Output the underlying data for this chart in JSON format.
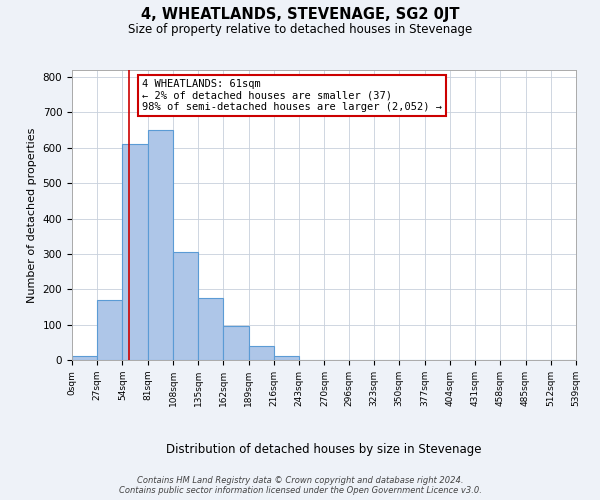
{
  "title": "4, WHEATLANDS, STEVENAGE, SG2 0JT",
  "subtitle": "Size of property relative to detached houses in Stevenage",
  "xlabel": "Distribution of detached houses by size in Stevenage",
  "ylabel": "Number of detached properties",
  "bin_edges": [
    0,
    27,
    54,
    81,
    108,
    135,
    162,
    189,
    216,
    243,
    270,
    296,
    323,
    350,
    377,
    404,
    431,
    458,
    485,
    512,
    539
  ],
  "bar_heights": [
    10,
    170,
    610,
    650,
    305,
    175,
    97,
    40,
    10,
    0,
    0,
    0,
    0,
    0,
    0,
    0,
    0,
    0,
    0,
    0
  ],
  "bar_color": "#aec6e8",
  "bar_edge_color": "#5b9bd5",
  "vline_x": 61,
  "vline_color": "#cc0000",
  "annotation_text": "4 WHEATLANDS: 61sqm\n← 2% of detached houses are smaller (37)\n98% of semi-detached houses are larger (2,052) →",
  "annotation_box_color": "#ffffff",
  "annotation_box_edge": "#cc0000",
  "ylim": [
    0,
    820
  ],
  "yticks": [
    0,
    100,
    200,
    300,
    400,
    500,
    600,
    700,
    800
  ],
  "tick_labels": [
    "0sqm",
    "27sqm",
    "54sqm",
    "81sqm",
    "108sqm",
    "135sqm",
    "162sqm",
    "189sqm",
    "216sqm",
    "243sqm",
    "270sqm",
    "296sqm",
    "323sqm",
    "350sqm",
    "377sqm",
    "404sqm",
    "431sqm",
    "458sqm",
    "485sqm",
    "512sqm",
    "539sqm"
  ],
  "footer_line1": "Contains HM Land Registry data © Crown copyright and database right 2024.",
  "footer_line2": "Contains public sector information licensed under the Open Government Licence v3.0.",
  "background_color": "#eef2f8",
  "plot_bg_color": "#ffffff",
  "grid_color": "#c8d0dc"
}
